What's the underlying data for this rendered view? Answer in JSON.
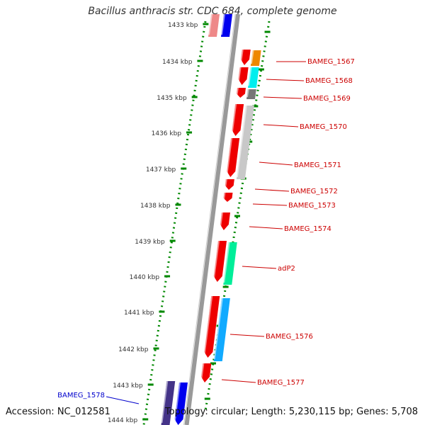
{
  "title": "Bacillus anthracis str. CDC 684, complete genome",
  "footer": {
    "accession": "Accession: NC_012581",
    "summary": "Topology: circular; Length: 5,230,115 bp; Genes: 5,708"
  },
  "kbp_labels": [
    "1433 kbp",
    "1434 kbp",
    "1435 kbp",
    "1436 kbp",
    "1437 kbp",
    "1438 kbp",
    "1439 kbp",
    "1440 kbp",
    "1441 kbp",
    "1442 kbp",
    "1443 kbp",
    "1444 kbp"
  ],
  "gene_labels": [
    {
      "text": "BAMEG_1567",
      "color": "#cc0000"
    },
    {
      "text": "BAMEG_1568",
      "color": "#cc0000"
    },
    {
      "text": "BAMEG_1569",
      "color": "#cc0000"
    },
    {
      "text": "BAMEG_1570",
      "color": "#cc0000"
    },
    {
      "text": "BAMEG_1571",
      "color": "#cc0000"
    },
    {
      "text": "BAMEG_1572",
      "color": "#cc0000"
    },
    {
      "text": "BAMEG_1573",
      "color": "#cc0000"
    },
    {
      "text": "BAMEG_1574",
      "color": "#cc0000"
    },
    {
      "text": "adP2",
      "color": "#cc0000"
    },
    {
      "text": "BAMEG_1576",
      "color": "#cc0000"
    },
    {
      "text": "BAMEG_1577",
      "color": "#cc0000"
    },
    {
      "text": "BAMEG_1578",
      "color": "#0000cc"
    }
  ],
  "colors": {
    "backbone": "#999999",
    "forward_cds": "#ee0000",
    "reverse_cds": "#0000ee",
    "tick_green": "#008800",
    "feature_orange": "#ee8800",
    "feature_cyan": "#00eeee",
    "feature_dark_gray": "#777777",
    "feature_light_gray": "#c8c8c8",
    "feature_green": "#00ee99",
    "feature_sky_blue": "#11aaff",
    "feature_pink": "#ee8888",
    "feature_indigo": "#443388"
  }
}
